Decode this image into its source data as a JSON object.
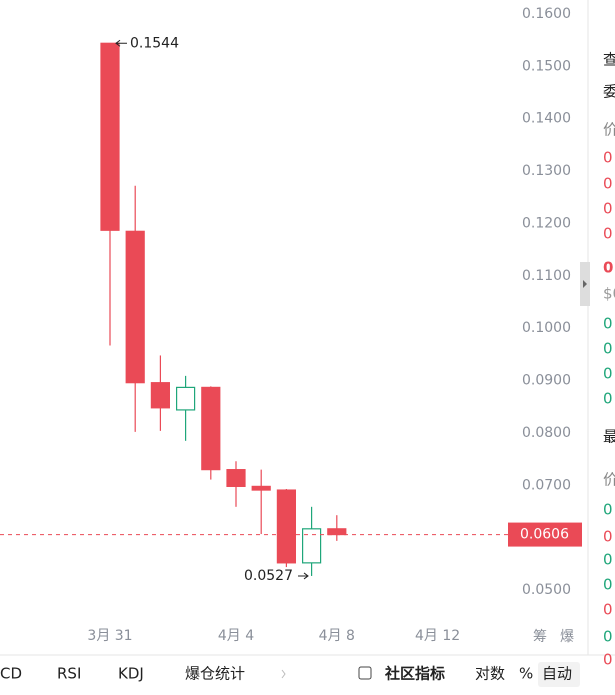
{
  "chart_data": {
    "type": "candlestick",
    "categories": [
      null,
      "3月 31",
      null,
      null,
      null,
      null,
      "4月 4",
      null,
      null,
      null,
      "4月 8",
      null,
      null,
      null,
      "4月 12",
      null,
      null
    ],
    "open": [
      null,
      0.1544,
      0.1185,
      0.0896,
      0.0844,
      0.0887,
      0.073,
      0.0698,
      0.0691,
      0.0552,
      0.0617,
      null,
      null,
      null,
      null,
      null,
      null
    ],
    "high": [
      null,
      0.1544,
      0.1272,
      0.0948,
      0.0909,
      0.0889,
      0.0746,
      0.073,
      0.0693,
      0.0659,
      0.0643,
      null,
      null,
      null,
      null,
      null,
      null
    ],
    "low": [
      null,
      0.0967,
      0.0802,
      0.0804,
      0.0785,
      0.0711,
      0.0659,
      0.0607,
      0.0544,
      0.0527,
      0.0594,
      null,
      null,
      null,
      null,
      null,
      null
    ],
    "close": [
      null,
      0.1187,
      0.0896,
      0.0848,
      0.0887,
      0.073,
      0.0698,
      0.0691,
      0.0552,
      0.0617,
      0.0606,
      null,
      null,
      null,
      null,
      null,
      null
    ],
    "up_color": "#1fa67a",
    "down_color": "#ea4a56",
    "ylim": [
      0.0462,
      0.1619
    ],
    "yticks": [
      {
        "value": 0.05,
        "label": "0.0500"
      },
      {
        "value": 0.06,
        "label": "0.0600"
      },
      {
        "value": 0.07,
        "label": "0.0700"
      },
      {
        "value": 0.08,
        "label": "0.0800"
      },
      {
        "value": 0.09,
        "label": "0.0900"
      },
      {
        "value": 0.1,
        "label": "0.1000"
      },
      {
        "value": 0.11,
        "label": "0.1100"
      },
      {
        "value": 0.12,
        "label": "0.1200"
      },
      {
        "value": 0.13,
        "label": "0.1300"
      },
      {
        "value": 0.14,
        "label": "0.1400"
      },
      {
        "value": 0.15,
        "label": "0.1500"
      },
      {
        "value": 0.16,
        "label": "0.1600"
      }
    ],
    "annotations": [
      {
        "value": 0.1544,
        "label": "0.1544"
      },
      {
        "value": 0.0527,
        "label": "0.0527"
      }
    ],
    "last_price": {
      "value": 0.0606,
      "label": "0.0606"
    },
    "x_extra_labels": [
      "筹",
      "爆"
    ],
    "grid": false
  },
  "toolbar": {
    "tabs": [
      "CD",
      "RSI",
      "KDJ",
      "爆仓统计",
      "社区指标"
    ],
    "options": [
      "对数",
      "%",
      "自动"
    ]
  },
  "sidebar": {
    "items": [
      "查",
      "委",
      "价",
      "0",
      "0",
      "0",
      "0",
      "0",
      "$0",
      "0",
      "0",
      "0",
      "0",
      "最",
      "价",
      "0",
      "0",
      "0",
      "0",
      "0",
      "0",
      "0"
    ]
  }
}
